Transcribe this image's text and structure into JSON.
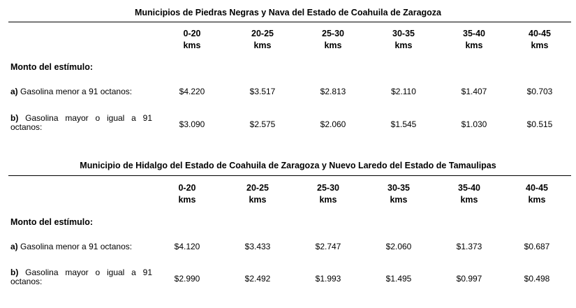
{
  "tables": [
    {
      "title": "Municipios de Piedras Negras y Nava del Estado de Coahuila de Zaragoza",
      "headers": [
        {
          "range": "0-20",
          "unit": "kms"
        },
        {
          "range": "20-25",
          "unit": "kms"
        },
        {
          "range": "25-30",
          "unit": "kms"
        },
        {
          "range": "30-35",
          "unit": "kms"
        },
        {
          "range": "35-40",
          "unit": "kms"
        },
        {
          "range": "40-45",
          "unit": "kms"
        }
      ],
      "monto_label": "Monto del estímulo:",
      "rows": [
        {
          "letter": "a)",
          "label": "Gasolina menor a 91 octanos:",
          "values": [
            "$4.220",
            "$3.517",
            "$2.813",
            "$2.110",
            "$1.407",
            "$0.703"
          ]
        },
        {
          "letter": "b)",
          "label": "Gasolina mayor o igual a 91 octanos:",
          "values": [
            "$3.090",
            "$2.575",
            "$2.060",
            "$1.545",
            "$1.030",
            "$0.515"
          ]
        }
      ]
    },
    {
      "title": "Municipio de Hidalgo del Estado de Coahuila de Zaragoza y Nuevo Laredo del Estado de Tamaulipas",
      "headers": [
        {
          "range": "0-20",
          "unit": "kms"
        },
        {
          "range": "20-25",
          "unit": "kms"
        },
        {
          "range": "25-30",
          "unit": "kms"
        },
        {
          "range": "30-35",
          "unit": "kms"
        },
        {
          "range": "35-40",
          "unit": "kms"
        },
        {
          "range": "40-45",
          "unit": "kms"
        }
      ],
      "monto_label": "Monto del estímulo:",
      "rows": [
        {
          "letter": "a)",
          "label": "Gasolina menor a 91 octanos:",
          "values": [
            "$4.120",
            "$3.433",
            "$2.747",
            "$2.060",
            "$1.373",
            "$0.687"
          ]
        },
        {
          "letter": "b)",
          "label": "Gasolina mayor o igual a 91 octanos:",
          "values": [
            "$2.990",
            "$2.492",
            "$1.993",
            "$1.495",
            "$0.997",
            "$0.498"
          ]
        }
      ]
    }
  ]
}
